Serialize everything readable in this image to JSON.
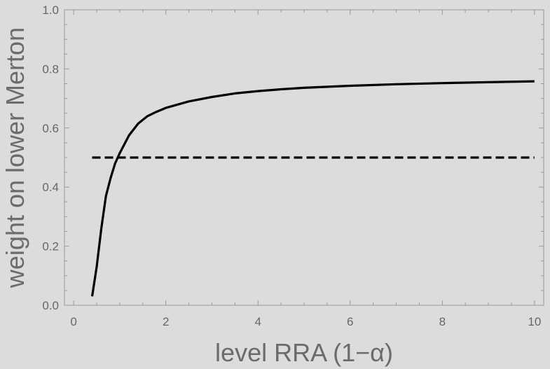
{
  "chart_data": {
    "type": "line",
    "title": "",
    "xlabel": "level RRA (1−α)",
    "ylabel": "weight on lower Merton",
    "xlim": [
      -0.2,
      10.2
    ],
    "ylim": [
      0,
      1.0
    ],
    "xticks": [
      0,
      2,
      4,
      6,
      8,
      10
    ],
    "yticks": [
      0.0,
      0.2,
      0.4,
      0.6,
      0.8,
      1.0
    ],
    "xtick_labels": [
      "0",
      "2",
      "4",
      "6",
      "8",
      "10"
    ],
    "ytick_labels": [
      "0.0",
      "0.2",
      "0.4",
      "0.6",
      "0.8",
      "1.0"
    ],
    "grid": false,
    "legend": "none",
    "series": [
      {
        "style": "solid",
        "color": "#000000",
        "x": [
          0.4,
          0.5,
          0.6,
          0.7,
          0.8,
          0.9,
          1.0,
          1.2,
          1.4,
          1.6,
          1.8,
          2.0,
          2.5,
          3.0,
          3.5,
          4.0,
          4.5,
          5.0,
          6.0,
          7.0,
          8.0,
          9.0,
          10.0
        ],
        "y": [
          0.03,
          0.13,
          0.26,
          0.37,
          0.43,
          0.48,
          0.515,
          0.575,
          0.615,
          0.64,
          0.655,
          0.668,
          0.69,
          0.705,
          0.717,
          0.725,
          0.731,
          0.736,
          0.743,
          0.748,
          0.752,
          0.755,
          0.758
        ]
      },
      {
        "style": "dashed",
        "color": "#000000",
        "x": [
          0.4,
          10.0
        ],
        "y": [
          0.5,
          0.5
        ]
      }
    ]
  }
}
